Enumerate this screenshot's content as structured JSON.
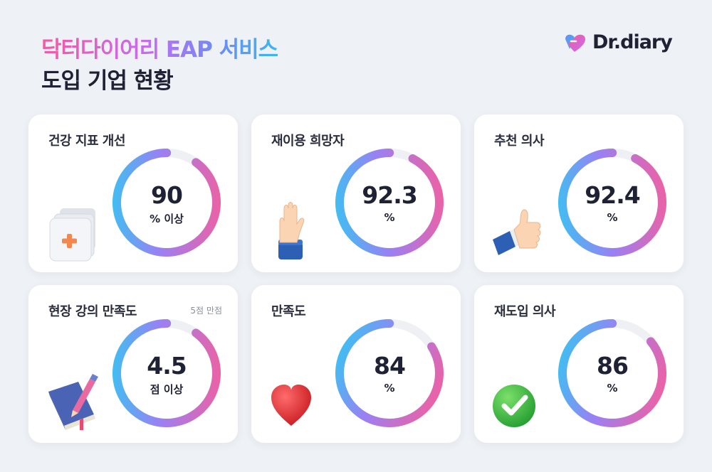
{
  "header": {
    "title_line1": "닥터다이어리 EAP 서비스",
    "title_line2": "도입 기업 현황",
    "logo_text": "Dr.diary"
  },
  "colors": {
    "ring_start": "#35c6f2",
    "ring_mid": "#a97cf2",
    "ring_end": "#f55e9c",
    "track": "#eef0f4",
    "background": "#eef1f5"
  },
  "cards": [
    {
      "label": "건강 지표 개선",
      "value": "90",
      "unit": "% 이상",
      "percent": 90,
      "icon": "medical-folder-icon"
    },
    {
      "label": "재이용 희망자",
      "value": "92.3",
      "unit": "%",
      "percent": 92.3,
      "icon": "raised-hand-icon"
    },
    {
      "label": "추천 의사",
      "value": "92.4",
      "unit": "%",
      "percent": 92.4,
      "icon": "thumbs-up-icon"
    },
    {
      "label": "현장 강의 만족도",
      "note": "5점 만점",
      "value": "4.5",
      "unit": "점 이상",
      "percent": 90,
      "icon": "book-pencil-icon"
    },
    {
      "label": "만족도",
      "value": "84",
      "unit": "%",
      "percent": 84,
      "icon": "heart-icon"
    },
    {
      "label": "재도입 의사",
      "value": "86",
      "unit": "%",
      "percent": 86,
      "icon": "check-icon"
    }
  ]
}
